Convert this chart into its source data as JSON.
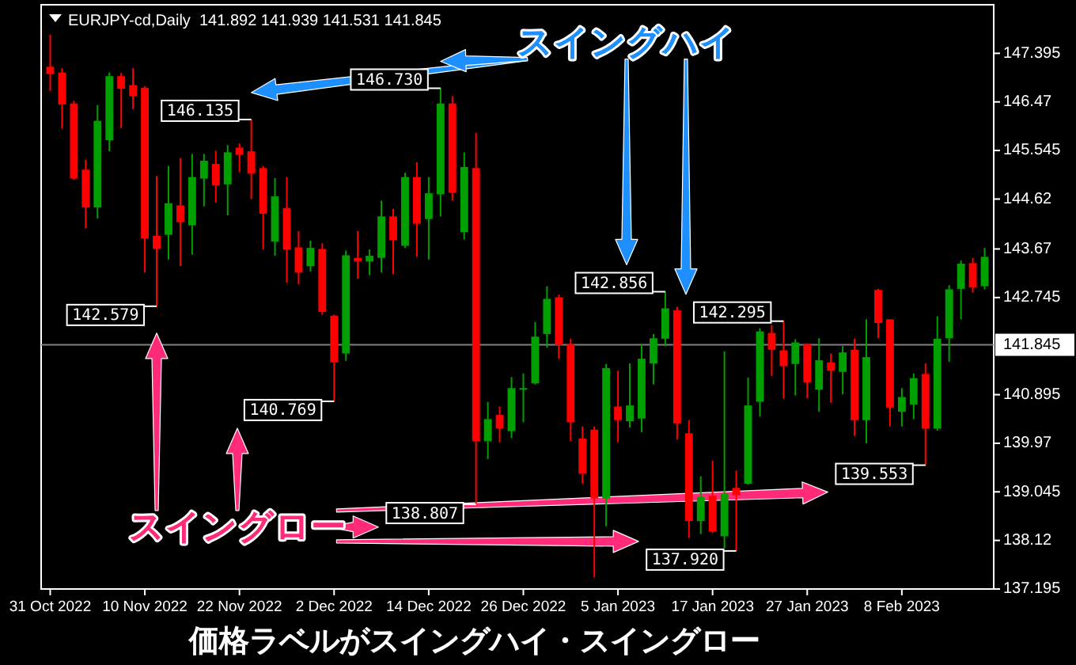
{
  "chart_data": {
    "type": "candlestick",
    "title": "EURJPY-cd,Daily  141.892 141.939 141.531 141.845",
    "categories": [
      "31 Oct 2022",
      null,
      null,
      null,
      null,
      null,
      null,
      null,
      "10 Nov 2022",
      null,
      null,
      null,
      null,
      null,
      null,
      null,
      "22 Nov 2022",
      null,
      null,
      null,
      null,
      null,
      null,
      null,
      "2 Dec 2022",
      null,
      null,
      null,
      null,
      null,
      null,
      null,
      "14 Dec 2022",
      null,
      null,
      null,
      null,
      null,
      null,
      null,
      "26 Dec 2022",
      null,
      null,
      null,
      null,
      null,
      null,
      null,
      "5 Jan 2023",
      null,
      null,
      null,
      null,
      null,
      null,
      null,
      "17 Jan 2023",
      null,
      null,
      null,
      null,
      null,
      null,
      null,
      "27 Jan 2023",
      null,
      null,
      null,
      null,
      null,
      null,
      null,
      "8 Feb 2023",
      null,
      null,
      null,
      null,
      null,
      null,
      null
    ],
    "ohlc": [
      [
        147.14,
        147.75,
        146.68,
        147.0
      ],
      [
        147.03,
        147.11,
        145.96,
        146.42
      ],
      [
        146.44,
        146.49,
        144.99,
        145.01
      ],
      [
        145.18,
        145.37,
        144.06,
        144.46
      ],
      [
        144.46,
        146.41,
        144.25,
        146.11
      ],
      [
        145.74,
        147.03,
        145.53,
        146.96
      ],
      [
        146.96,
        147.02,
        145.97,
        146.72
      ],
      [
        146.79,
        147.11,
        146.33,
        146.58
      ],
      [
        146.74,
        146.77,
        143.22,
        143.87
      ],
      [
        143.92,
        145.06,
        142.579,
        143.67
      ],
      [
        143.94,
        145.25,
        143.47,
        144.54
      ],
      [
        144.5,
        145.4,
        143.34,
        144.18
      ],
      [
        144.12,
        145.48,
        143.56,
        145.04
      ],
      [
        145.01,
        145.48,
        144.48,
        145.35
      ],
      [
        145.29,
        145.54,
        144.55,
        144.88
      ],
      [
        144.9,
        145.65,
        144.31,
        145.51
      ],
      [
        145.6,
        145.68,
        145.13,
        145.46
      ],
      [
        145.53,
        146.135,
        144.62,
        145.11
      ],
      [
        145.21,
        145.25,
        143.66,
        144.34
      ],
      [
        143.81,
        145.02,
        143.54,
        144.67
      ],
      [
        144.45,
        145.04,
        143.03,
        143.66
      ],
      [
        143.7,
        144.01,
        143.0,
        143.22
      ],
      [
        143.34,
        143.83,
        143.24,
        143.69
      ],
      [
        143.67,
        143.78,
        142.42,
        142.47
      ],
      [
        142.4,
        142.42,
        140.769,
        141.51
      ],
      [
        141.68,
        143.64,
        141.54,
        143.55
      ],
      [
        143.5,
        144.01,
        143.1,
        143.43
      ],
      [
        143.43,
        143.66,
        143.17,
        143.54
      ],
      [
        143.5,
        144.59,
        143.22,
        144.29
      ],
      [
        144.29,
        144.43,
        143.19,
        143.84
      ],
      [
        143.73,
        145.12,
        143.69,
        145.04
      ],
      [
        145.04,
        145.32,
        143.52,
        144.15
      ],
      [
        144.24,
        145.04,
        143.47,
        144.73
      ],
      [
        144.71,
        146.73,
        144.29,
        146.44
      ],
      [
        146.44,
        146.58,
        144.59,
        144.74
      ],
      [
        143.99,
        145.51,
        143.85,
        145.23
      ],
      [
        145.21,
        145.88,
        138.807,
        140.01
      ],
      [
        140.01,
        140.76,
        139.67,
        140.43
      ],
      [
        140.51,
        140.67,
        139.99,
        140.25
      ],
      [
        140.2,
        141.23,
        140.07,
        141.02
      ],
      [
        141.0,
        141.3,
        140.37,
        141.02
      ],
      [
        141.11,
        142.28,
        141.09,
        142.0
      ],
      [
        142.05,
        142.96,
        141.79,
        142.72
      ],
      [
        142.75,
        142.8,
        141.58,
        141.84
      ],
      [
        141.86,
        141.96,
        140.01,
        140.37
      ],
      [
        140.06,
        140.29,
        139.2,
        139.39
      ],
      [
        140.23,
        140.29,
        137.42,
        138.92
      ],
      [
        138.92,
        141.48,
        138.39,
        141.4
      ],
      [
        140.67,
        141.35,
        139.99,
        140.41
      ],
      [
        140.39,
        141.49,
        140.27,
        140.69
      ],
      [
        140.44,
        141.86,
        140.18,
        141.58
      ],
      [
        141.49,
        142.05,
        141.09,
        141.97
      ],
      [
        141.96,
        142.856,
        141.82,
        142.54
      ],
      [
        142.5,
        142.57,
        140.04,
        140.35
      ],
      [
        140.16,
        140.41,
        138.17,
        138.49
      ],
      [
        138.49,
        139.34,
        138.24,
        138.95
      ],
      [
        138.97,
        139.64,
        138.26,
        138.29
      ],
      [
        138.2,
        141.72,
        137.97,
        139.01
      ],
      [
        139.12,
        139.45,
        137.92,
        138.98
      ],
      [
        139.2,
        141.22,
        139.18,
        140.69
      ],
      [
        140.76,
        142.16,
        140.48,
        142.1
      ],
      [
        142.07,
        142.22,
        141.25,
        141.75
      ],
      [
        141.74,
        142.295,
        140.82,
        141.44
      ],
      [
        141.48,
        141.95,
        140.88,
        141.89
      ],
      [
        141.86,
        141.86,
        140.83,
        141.13
      ],
      [
        140.99,
        141.97,
        140.57,
        141.55
      ],
      [
        141.51,
        141.68,
        140.74,
        141.35
      ],
      [
        141.33,
        141.82,
        140.9,
        141.7
      ],
      [
        141.75,
        141.96,
        140.11,
        140.41
      ],
      [
        140.41,
        142.33,
        139.97,
        141.61
      ],
      [
        142.89,
        142.91,
        141.97,
        142.26
      ],
      [
        142.33,
        142.33,
        140.29,
        140.65
      ],
      [
        140.57,
        141.02,
        140.29,
        140.85
      ],
      [
        140.71,
        141.3,
        140.43,
        141.21
      ],
      [
        141.29,
        141.49,
        139.553,
        140.25
      ],
      [
        140.25,
        142.39,
        140.21,
        141.96
      ],
      [
        141.97,
        142.98,
        141.52,
        142.9
      ],
      [
        142.91,
        143.45,
        142.33,
        143.39
      ],
      [
        143.4,
        143.5,
        142.84,
        142.94
      ],
      [
        142.96,
        143.69,
        142.9,
        143.52
      ]
    ],
    "ylim": [
      137.195,
      148.32
    ],
    "yticks": [
      137.195,
      138.12,
      139.045,
      139.97,
      140.895,
      142.745,
      143.67,
      144.62,
      145.545,
      146.47,
      147.395
    ],
    "ref_lines": [
      {
        "axis": "y",
        "value": 141.845,
        "label": "141.845",
        "color": "#808080"
      }
    ],
    "value_labels": [
      null,
      null,
      null,
      null,
      null,
      null,
      null,
      null,
      null,
      "142.579",
      null,
      null,
      null,
      null,
      null,
      null,
      null,
      "146.135",
      null,
      null,
      null,
      null,
      null,
      null,
      "140.769",
      null,
      null,
      null,
      null,
      null,
      null,
      null,
      null,
      "146.730",
      null,
      null,
      "138.807",
      null,
      null,
      null,
      null,
      null,
      null,
      null,
      null,
      null,
      null,
      null,
      null,
      null,
      null,
      null,
      "142.856",
      null,
      null,
      null,
      null,
      null,
      "137.920",
      null,
      null,
      null,
      "142.295",
      null,
      null,
      null,
      null,
      null,
      null,
      null,
      null,
      null,
      null,
      null,
      "139.553",
      null,
      null,
      null,
      null,
      null
    ],
    "annotations": [
      "スイングハイ",
      "スイングロー",
      "価格ラベルがスイングハイ・スイングロー"
    ],
    "grid": false
  }
}
